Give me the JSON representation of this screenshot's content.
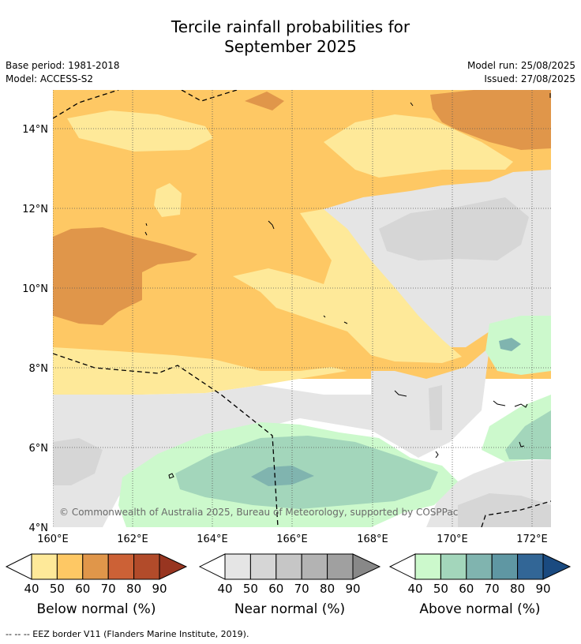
{
  "title": {
    "line1": "Tercile rainfall probabilities for",
    "line2": "September 2025"
  },
  "meta": {
    "base_period": "Base period: 1981-2018",
    "model": "Model: ACCESS-S2",
    "model_run": "Model run: 25/08/2025",
    "issued": "Issued: 27/08/2025"
  },
  "map": {
    "lon_ticks": [
      "160°E",
      "162°E",
      "164°E",
      "166°E",
      "168°E",
      "170°E",
      "172°E"
    ],
    "lat_ticks": [
      "4°N",
      "6°N",
      "8°N",
      "10°N",
      "12°N",
      "14°N"
    ],
    "copyright": "© Commonwealth of Australia 2025, Bureau of Meteorology, supported by COSPPac"
  },
  "colorbars": [
    {
      "name": "below",
      "title": "Below normal (%)",
      "labels": [
        "40",
        "50",
        "60",
        "70",
        "80",
        "90"
      ],
      "colors": [
        "#fee999",
        "#fec864",
        "#e0964a",
        "#cc6136",
        "#b24b2a",
        "#983520"
      ]
    },
    {
      "name": "near",
      "title": "Near normal (%)",
      "labels": [
        "40",
        "50",
        "60",
        "70",
        "80",
        "90"
      ],
      "colors": [
        "#e5e5e5",
        "#d6d6d6",
        "#c6c6c6",
        "#b3b3b3",
        "#a0a0a0",
        "#888888"
      ]
    },
    {
      "name": "above",
      "title": "Above normal (%)",
      "labels": [
        "40",
        "50",
        "60",
        "70",
        "80",
        "90"
      ],
      "colors": [
        "#ccf9cc",
        "#a3d6bb",
        "#80b4af",
        "#5f97a3",
        "#326696",
        "#1a4a80"
      ]
    }
  ],
  "footer": "--  --  -- EEZ border V11 (Flanders Marine Institute, 2019)."
}
